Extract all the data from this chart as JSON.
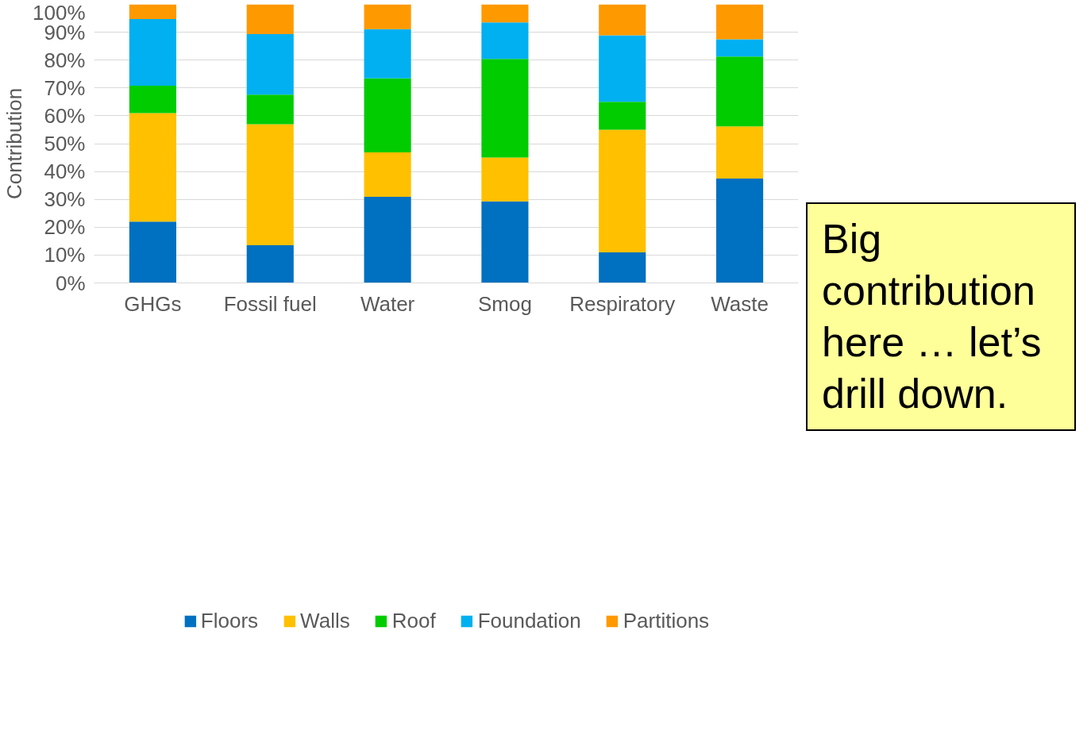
{
  "chart_data": {
    "type": "bar",
    "stacked": true,
    "ylabel": "Contribution",
    "categories": [
      "GHGs",
      "Fossil fuel",
      "Water",
      "Smog",
      "Respiratory",
      "Waste"
    ],
    "series": [
      {
        "name": "Floors",
        "color": "#0070c0",
        "values": [
          22,
          13.5,
          30.9,
          29.3,
          11,
          37.5
        ]
      },
      {
        "name": "Walls",
        "color": "#ffc000",
        "values": [
          39,
          43.5,
          16,
          15.7,
          44,
          18.7
        ]
      },
      {
        "name": "Roof",
        "color": "#00cc00",
        "values": [
          9.8,
          10.6,
          26.5,
          35.4,
          10,
          25.1
        ]
      },
      {
        "name": "Foundation",
        "color": "#00b0f0",
        "values": [
          23.9,
          21.7,
          17.7,
          13.1,
          23.9,
          6.2
        ]
      },
      {
        "name": "Partitions",
        "color": "#ff9900",
        "values": [
          5.3,
          10.7,
          8.9,
          6.5,
          11.1,
          12.5
        ]
      }
    ],
    "ylim": [
      0,
      100
    ],
    "yticks": [
      {
        "value": 0,
        "label": "0%"
      },
      {
        "value": 10,
        "label": "10%"
      },
      {
        "value": 20,
        "label": "20%"
      },
      {
        "value": 30,
        "label": "30%"
      },
      {
        "value": 40,
        "label": "40%"
      },
      {
        "value": 50,
        "label": "50%"
      },
      {
        "value": 60,
        "label": "60%"
      },
      {
        "value": 70,
        "label": "70%"
      },
      {
        "value": 80,
        "label": "80%"
      },
      {
        "value": 90,
        "label": "90%"
      },
      {
        "value": 100,
        "label": "100%"
      }
    ],
    "grid": "y",
    "legend": "bottom",
    "annotations": [
      "Big contribution here … let’s drill down."
    ]
  }
}
